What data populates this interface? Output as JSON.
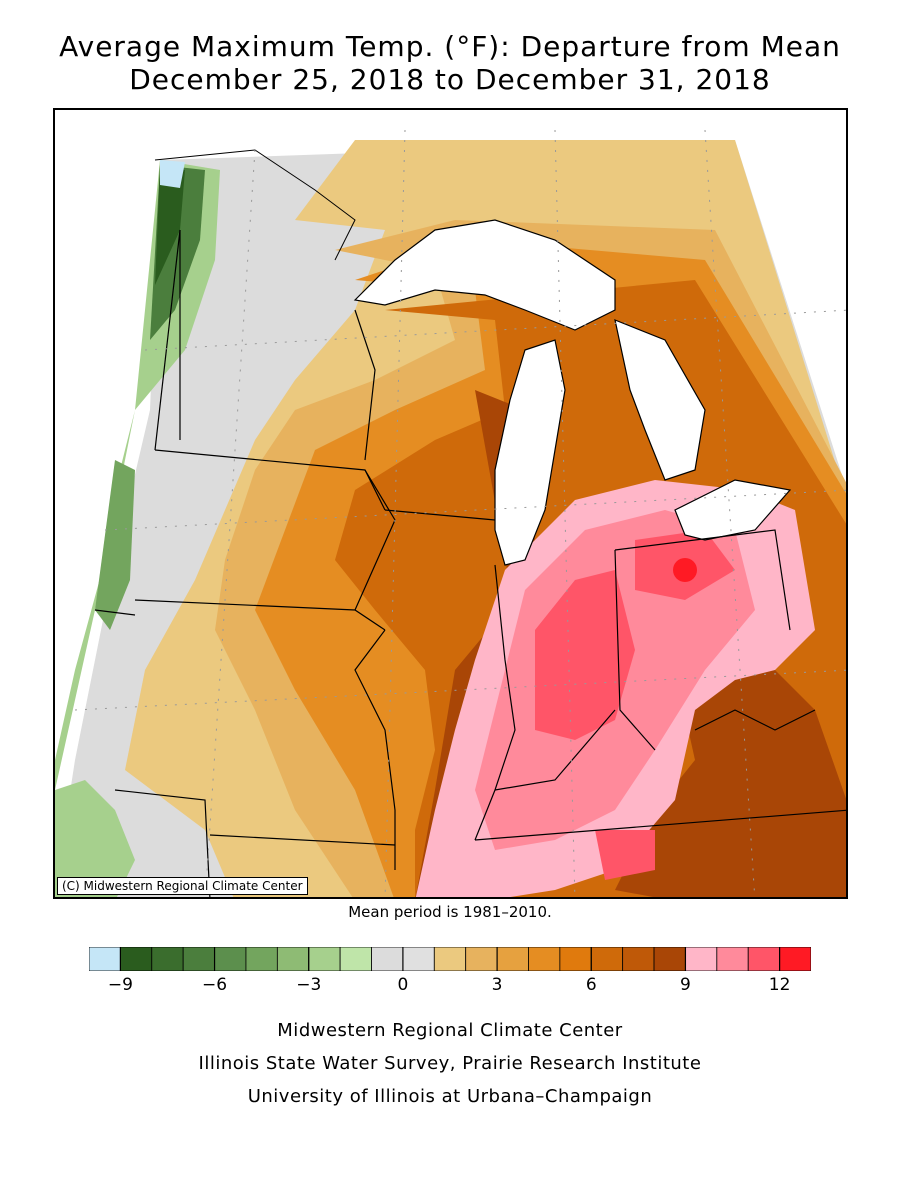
{
  "title": {
    "line1": "Average Maximum Temp. (°F): Departure from Mean",
    "line2": "December 25, 2018 to December 31, 2018"
  },
  "map": {
    "copyright": "(C) Midwestern Regional Climate Center",
    "region": "Upper Midwest / Great Lakes",
    "max_anomaly_area": "Ohio / Indiana (9 to 12 °F)",
    "min_anomaly_area": "NW Minnesota border (-9 °F)"
  },
  "mean_note": "Mean period is 1981–2010.",
  "legend": {
    "colors": [
      "#c5e6f7",
      "#2a5c1e",
      "#3a6d2d",
      "#4b7e3d",
      "#5c8f4d",
      "#73a55e",
      "#8ebb74",
      "#a6d08d",
      "#bfe5a9",
      "#dcdcdc",
      "#e0e0e0",
      "#ebc97f",
      "#e7b25e",
      "#e6a13f",
      "#e58d22",
      "#e07a0d",
      "#cf6a0a",
      "#bf5908",
      "#a94606",
      "#ffb6c8",
      "#ff8a9b",
      "#ff5568",
      "#ff1a24"
    ],
    "tick_labels": [
      "−9",
      "−6",
      "−3",
      "0",
      "3",
      "6",
      "9",
      "12"
    ],
    "tick_positions": [
      -9,
      -6,
      -3,
      0,
      3,
      6,
      9,
      12
    ],
    "range": [
      -10,
      13
    ]
  },
  "credits": {
    "line1": "Midwestern Regional Climate Center",
    "line2": "Illinois State Water Survey, Prairie Research Institute",
    "line3": "University of Illinois at Urbana–Champaign"
  }
}
